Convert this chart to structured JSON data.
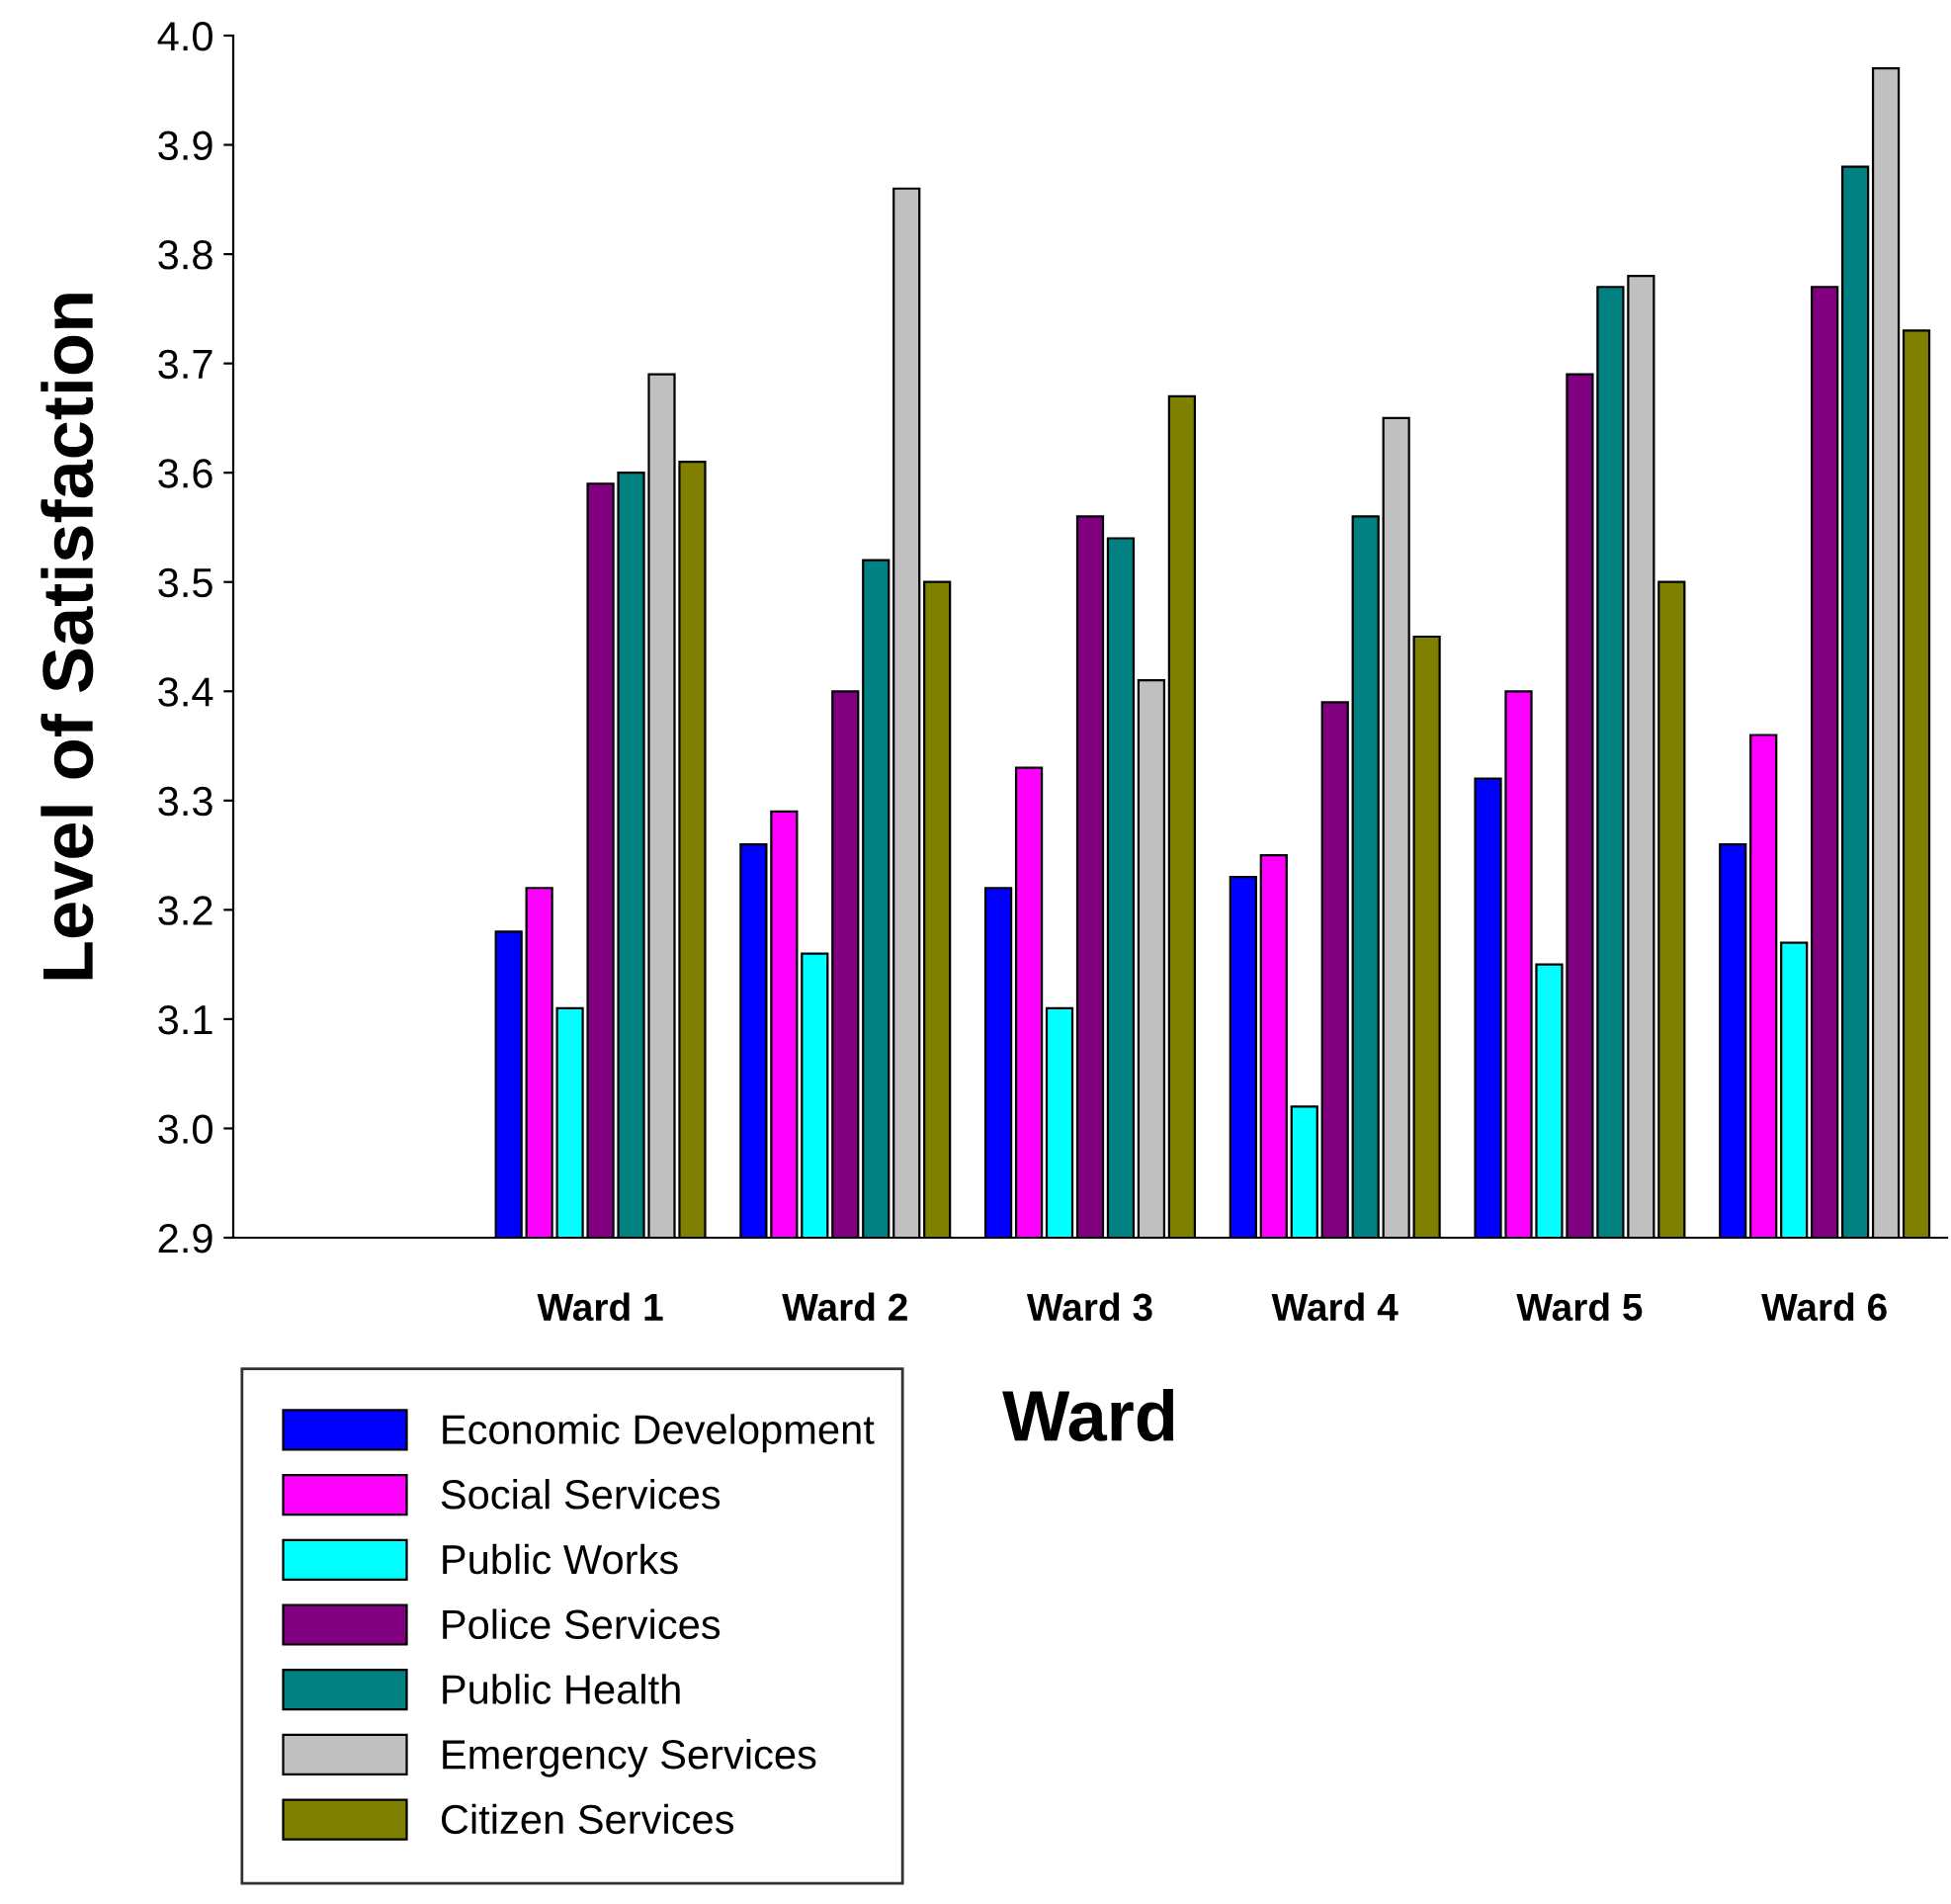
{
  "chart_data": {
    "type": "bar",
    "xlabel": "Ward",
    "ylabel": "Level of Satisfaction",
    "categories": [
      null,
      "Ward 1",
      "Ward 2",
      "Ward 3",
      "Ward 4",
      "Ward 5",
      "Ward 6"
    ],
    "series": [
      {
        "name": "Economic Development",
        "color": "#0000ff",
        "values": [
          null,
          3.18,
          3.26,
          3.22,
          3.23,
          3.32,
          3.26
        ]
      },
      {
        "name": "Social Services",
        "color": "#ff00ff",
        "values": [
          null,
          3.22,
          3.29,
          3.33,
          3.25,
          3.4,
          3.36
        ]
      },
      {
        "name": "Public Works",
        "color": "#00ffff",
        "values": [
          null,
          3.11,
          3.16,
          3.11,
          3.02,
          3.15,
          3.17
        ]
      },
      {
        "name": "Police Services",
        "color": "#800080",
        "values": [
          null,
          3.59,
          3.4,
          3.56,
          3.39,
          3.69,
          3.77
        ]
      },
      {
        "name": "Public Health",
        "color": "#008080",
        "values": [
          null,
          3.6,
          3.52,
          3.54,
          3.56,
          3.77,
          3.88
        ]
      },
      {
        "name": "Emergency Services",
        "color": "#c0c0c0",
        "values": [
          null,
          3.69,
          3.86,
          3.41,
          3.65,
          3.78,
          3.97
        ]
      },
      {
        "name": "Citizen Services",
        "color": "#808000",
        "values": [
          null,
          3.61,
          3.5,
          3.67,
          3.45,
          3.5,
          3.73
        ]
      }
    ],
    "ylim": [
      2.9,
      4.0
    ],
    "yticks": [
      2.9,
      {
        "value": 3,
        "label": "3.0"
      },
      3.1,
      3.2,
      3.3,
      3.4,
      3.5,
      3.6,
      3.7,
      3.8,
      3.9,
      {
        "value": 4,
        "label": "4.0"
      }
    ],
    "grid": false,
    "legend": "bottom left"
  }
}
